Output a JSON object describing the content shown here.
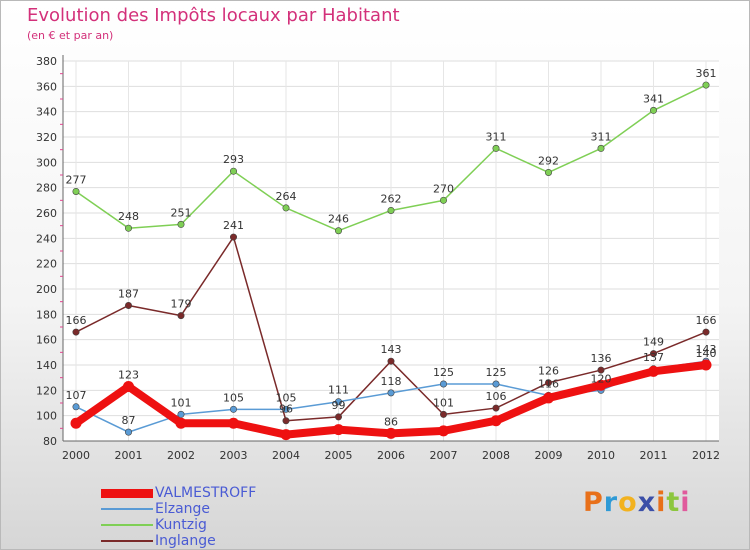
{
  "header": {
    "title": "Evolution des Impôts locaux par Habitant",
    "subtitle": "(en € et par an)"
  },
  "brand": {
    "text": "Proxiti",
    "letters": [
      "P",
      "r",
      "o",
      "x",
      "i",
      "t",
      "i"
    ],
    "letter_colors": [
      "#e8701a",
      "#2e9ad6",
      "#f2b21f",
      "#3b4fa8",
      "#e8701a",
      "#8cc63e",
      "#e05a9c"
    ]
  },
  "chart_data": {
    "type": "line",
    "title": "Evolution des Impôts locaux par Habitant",
    "subtitle": "(en € et par an)",
    "xlabel": "",
    "ylabel": "",
    "x": [
      "2000",
      "2001",
      "2002",
      "2003",
      "2004",
      "2005",
      "2006",
      "2007",
      "2008",
      "2009",
      "2010",
      "2011",
      "2012"
    ],
    "ylim": [
      80,
      380
    ],
    "yticks": [
      80,
      100,
      120,
      140,
      160,
      180,
      200,
      220,
      240,
      260,
      280,
      300,
      320,
      340,
      360,
      380
    ],
    "legend_position": "bottom-left",
    "series": [
      {
        "name": "VALMESTROFF",
        "color": "#ee1111",
        "values": [
          94,
          123,
          94,
          94,
          85,
          89,
          86,
          88,
          96,
          114,
          124,
          135,
          140
        ],
        "labels": [
          "",
          "123",
          "",
          "",
          "",
          "",
          "86",
          "",
          "",
          "",
          "",
          "",
          "140"
        ]
      },
      {
        "name": "Elzange",
        "color": "#5a9bd5",
        "values": [
          107,
          87,
          101,
          105,
          105,
          111,
          118,
          125,
          125,
          116,
          120,
          137,
          143
        ],
        "labels": [
          "107",
          "87",
          "101",
          "105",
          "105",
          "111",
          "118",
          "125",
          "125",
          "116",
          "120",
          "137",
          "143"
        ]
      },
      {
        "name": "Kuntzig",
        "color": "#7fcf55",
        "values": [
          277,
          248,
          251,
          293,
          264,
          246,
          262,
          270,
          311,
          292,
          311,
          341,
          361
        ],
        "labels": [
          "277",
          "248",
          "251",
          "293",
          "264",
          "246",
          "262",
          "270",
          "311",
          "292",
          "311",
          "341",
          "361"
        ]
      },
      {
        "name": "Inglange",
        "color": "#7a2a2a",
        "values": [
          166,
          187,
          179,
          241,
          96,
          99,
          143,
          101,
          106,
          126,
          136,
          149,
          166
        ],
        "labels": [
          "166",
          "187",
          "179",
          "241",
          "96",
          "99",
          "143",
          "101",
          "106",
          "126",
          "136",
          "149",
          "166"
        ]
      }
    ]
  }
}
